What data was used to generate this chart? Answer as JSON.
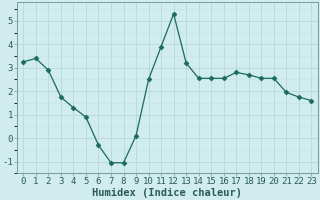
{
  "x": [
    0,
    1,
    2,
    3,
    4,
    5,
    6,
    7,
    8,
    9,
    10,
    11,
    12,
    13,
    14,
    15,
    16,
    17,
    18,
    19,
    20,
    21,
    22,
    23
  ],
  "y": [
    3.25,
    3.4,
    2.9,
    1.75,
    1.3,
    0.9,
    -0.3,
    -1.05,
    -1.05,
    0.1,
    2.5,
    3.9,
    5.3,
    3.2,
    2.55,
    2.55,
    2.55,
    2.8,
    2.7,
    2.55,
    2.55,
    1.95,
    1.75,
    1.6
  ],
  "line_color": "#1a6b5a",
  "marker": "D",
  "marker_size": 2.5,
  "bg_color": "#d0ecec",
  "grid_major_color": "#b8d8d8",
  "grid_minor_color": "#c4e4e4",
  "xlabel": "Humidex (Indice chaleur)",
  "xlabel_fontsize": 7.5,
  "tick_fontsize": 6.5,
  "xlim": [
    -0.5,
    23.5
  ],
  "ylim": [
    -1.5,
    5.8
  ],
  "yticks": [
    -1,
    0,
    1,
    2,
    3,
    4,
    5
  ],
  "xticks": [
    0,
    1,
    2,
    3,
    4,
    5,
    6,
    7,
    8,
    9,
    10,
    11,
    12,
    13,
    14,
    15,
    16,
    17,
    18,
    19,
    20,
    21,
    22,
    23
  ],
  "spine_color": "#7a9a9a",
  "tick_color": "#2a5a5a"
}
